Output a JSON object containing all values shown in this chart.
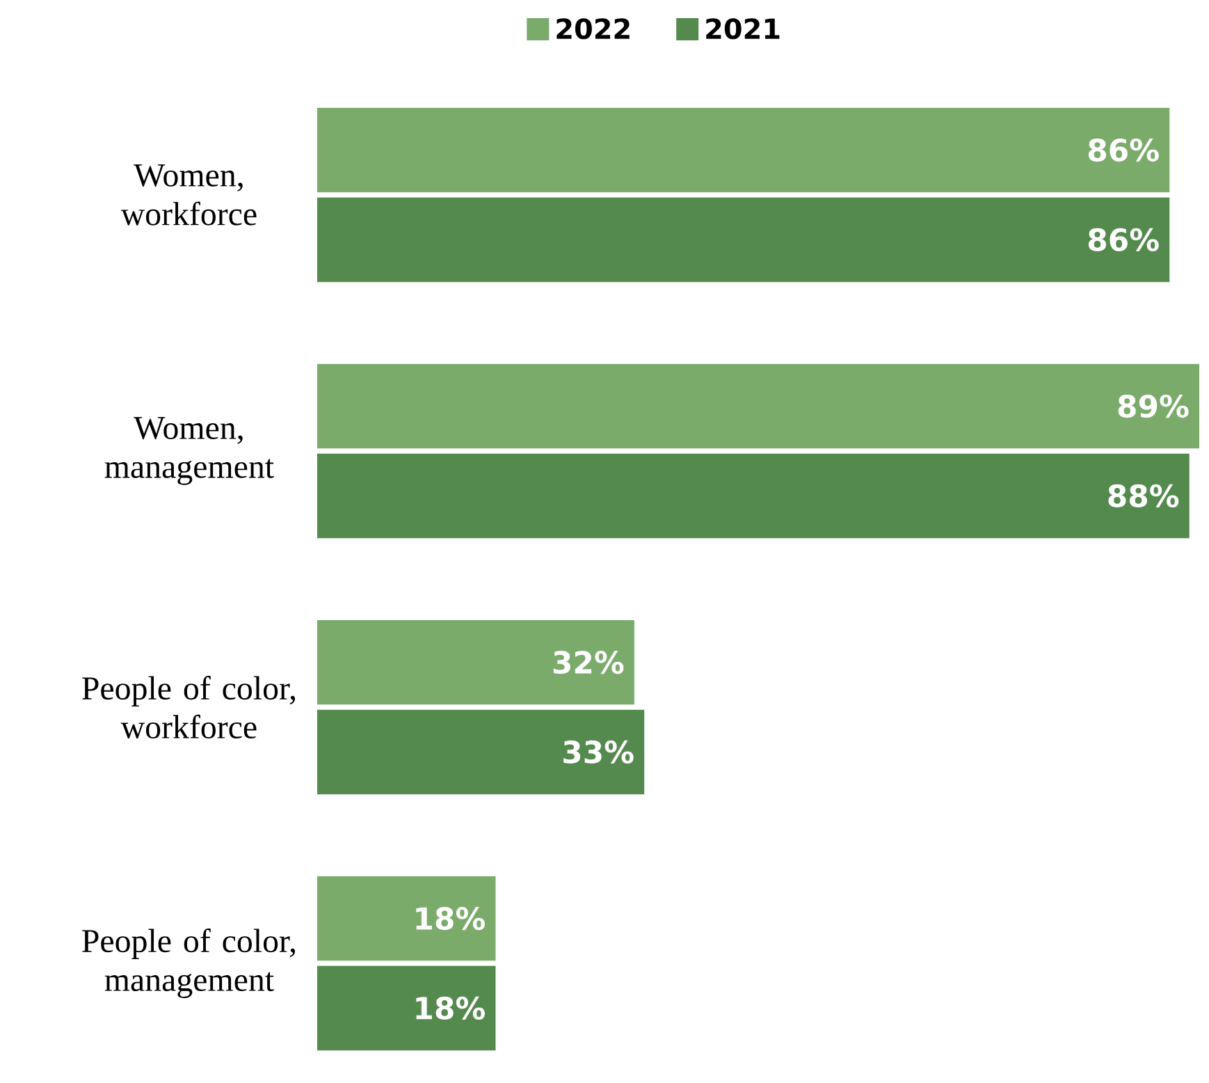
{
  "chart_data": {
    "type": "bar",
    "orientation": "horizontal",
    "legend": "top",
    "categories": [
      "Women, workforce",
      "Women, management",
      "People of color, workforce",
      "People of color, management"
    ],
    "series": [
      {
        "name": "2022",
        "color": "#7aab6b",
        "values": [
          86,
          89,
          32,
          18
        ],
        "value_labels": [
          "86%",
          "89%",
          "32%",
          "18%"
        ]
      },
      {
        "name": "2021",
        "color": "#548a4d",
        "values": [
          86,
          88,
          33,
          18
        ],
        "value_labels": [
          "86%",
          "88%",
          "33%",
          "18%"
        ]
      }
    ]
  }
}
